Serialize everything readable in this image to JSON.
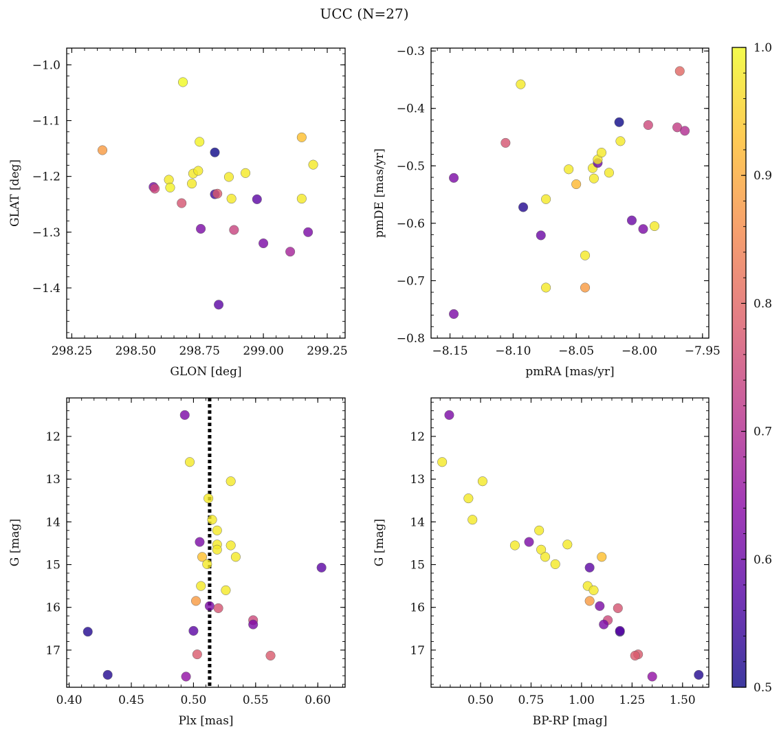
{
  "title": "UCC (N=27)",
  "colorbar": {
    "min": 0.5,
    "max": 1.0,
    "ticks": [
      "0.5",
      "0.6",
      "0.7",
      "0.8",
      "0.9",
      "1.0"
    ],
    "tick_values": [
      0.5,
      0.6,
      0.7,
      0.8,
      0.9,
      1.0
    ],
    "colormap": "plasma",
    "colormap_stops": [
      "#0d0887",
      "#5302a3",
      "#8b0aa5",
      "#b83289",
      "#db5c68",
      "#f48849",
      "#febd2a",
      "#f0f921"
    ]
  },
  "chart_data": [
    {
      "type": "scatter",
      "xlabel": "GLON [deg]",
      "ylabel": "GLAT [deg]",
      "xlim": [
        298.23,
        299.32
      ],
      "ylim": [
        -1.49,
        -0.97
      ],
      "xticks": [
        298.25,
        298.5,
        298.75,
        299.0,
        299.25
      ],
      "xtick_labels": [
        "298.25",
        "298.50",
        "298.75",
        "299.00",
        "299.25"
      ],
      "yticks": [
        -1.0,
        -1.1,
        -1.2,
        -1.3,
        -1.4
      ],
      "ytick_labels": [
        "−1.0",
        "−1.1",
        "−1.2",
        "−1.3",
        "−1.4"
      ],
      "points": [
        {
          "x": 298.37,
          "y": -1.153,
          "c": 0.88
        },
        {
          "x": 298.685,
          "y": -1.031,
          "c": 1.0
        },
        {
          "x": 298.57,
          "y": -1.219,
          "c": 0.62
        },
        {
          "x": 298.575,
          "y": -1.222,
          "c": 0.75
        },
        {
          "x": 298.63,
          "y": -1.206,
          "c": 0.98
        },
        {
          "x": 298.635,
          "y": -1.22,
          "c": 0.99
        },
        {
          "x": 298.68,
          "y": -1.248,
          "c": 0.77
        },
        {
          "x": 298.72,
          "y": -1.213,
          "c": 0.98
        },
        {
          "x": 298.725,
          "y": -1.195,
          "c": 0.98
        },
        {
          "x": 298.745,
          "y": -1.19,
          "c": 0.98
        },
        {
          "x": 298.75,
          "y": -1.138,
          "c": 0.99
        },
        {
          "x": 298.755,
          "y": -1.294,
          "c": 0.62
        },
        {
          "x": 298.81,
          "y": -1.157,
          "c": 0.5
        },
        {
          "x": 298.81,
          "y": -1.232,
          "c": 0.55
        },
        {
          "x": 298.82,
          "y": -1.231,
          "c": 0.78
        },
        {
          "x": 298.825,
          "y": -1.43,
          "c": 0.58
        },
        {
          "x": 298.865,
          "y": -1.201,
          "c": 0.98
        },
        {
          "x": 298.875,
          "y": -1.24,
          "c": 0.98
        },
        {
          "x": 298.885,
          "y": -1.296,
          "c": 0.74
        },
        {
          "x": 298.93,
          "y": -1.194,
          "c": 0.98
        },
        {
          "x": 298.975,
          "y": -1.241,
          "c": 0.58
        },
        {
          "x": 299.0,
          "y": -1.32,
          "c": 0.62
        },
        {
          "x": 299.105,
          "y": -1.335,
          "c": 0.68
        },
        {
          "x": 299.15,
          "y": -1.13,
          "c": 0.93
        },
        {
          "x": 299.15,
          "y": -1.24,
          "c": 0.98
        },
        {
          "x": 299.175,
          "y": -1.3,
          "c": 0.62
        },
        {
          "x": 299.195,
          "y": -1.179,
          "c": 0.98
        }
      ]
    },
    {
      "type": "scatter",
      "xlabel": "pmRA [mas/yr]",
      "ylabel": "pmDE [mas/yr]",
      "xlim": [
        -8.165,
        -7.945
      ],
      "ylim": [
        -0.8,
        -0.295
      ],
      "xticks": [
        -8.15,
        -8.1,
        -8.05,
        -8.0,
        -7.95
      ],
      "xtick_labels": [
        "−8.15",
        "−8.10",
        "−8.05",
        "−8.00",
        "−7.95"
      ],
      "yticks": [
        -0.3,
        -0.4,
        -0.5,
        -0.6,
        -0.7,
        -0.8
      ],
      "ytick_labels": [
        "−0.3",
        "−0.4",
        "−0.5",
        "−0.6",
        "−0.7",
        "−0.8"
      ],
      "points": [
        {
          "x": -8.147,
          "y": -0.521,
          "c": 0.62
        },
        {
          "x": -8.147,
          "y": -0.758,
          "c": 0.62
        },
        {
          "x": -8.106,
          "y": -0.46,
          "c": 0.77
        },
        {
          "x": -8.094,
          "y": -0.358,
          "c": 0.98
        },
        {
          "x": -8.092,
          "y": -0.572,
          "c": 0.52
        },
        {
          "x": -8.078,
          "y": -0.621,
          "c": 0.6
        },
        {
          "x": -8.074,
          "y": -0.558,
          "c": 0.98
        },
        {
          "x": -8.074,
          "y": -0.712,
          "c": 0.98
        },
        {
          "x": -8.056,
          "y": -0.506,
          "c": 0.98
        },
        {
          "x": -8.05,
          "y": -0.532,
          "c": 0.92
        },
        {
          "x": -8.043,
          "y": -0.656,
          "c": 0.98
        },
        {
          "x": -8.043,
          "y": -0.712,
          "c": 0.88
        },
        {
          "x": -8.037,
          "y": -0.504,
          "c": 0.98
        },
        {
          "x": -8.036,
          "y": -0.522,
          "c": 0.98
        },
        {
          "x": -8.033,
          "y": -0.495,
          "c": 0.6
        },
        {
          "x": -8.033,
          "y": -0.489,
          "c": 0.98
        },
        {
          "x": -8.03,
          "y": -0.477,
          "c": 0.98
        },
        {
          "x": -8.024,
          "y": -0.512,
          "c": 0.98
        },
        {
          "x": -8.016,
          "y": -0.424,
          "c": 0.5
        },
        {
          "x": -8.015,
          "y": -0.457,
          "c": 0.98
        },
        {
          "x": -8.006,
          "y": -0.595,
          "c": 0.6
        },
        {
          "x": -7.997,
          "y": -0.61,
          "c": 0.62
        },
        {
          "x": -7.993,
          "y": -0.429,
          "c": 0.75
        },
        {
          "x": -7.988,
          "y": -0.605,
          "c": 0.98
        },
        {
          "x": -7.97,
          "y": -0.433,
          "c": 0.73
        },
        {
          "x": -7.968,
          "y": -0.335,
          "c": 0.8
        },
        {
          "x": -7.964,
          "y": -0.439,
          "c": 0.7
        }
      ]
    },
    {
      "type": "scatter",
      "xlabel": "Plx [mas]",
      "ylabel": "G [mag]",
      "xlim": [
        0.398,
        0.622
      ],
      "ylim": [
        17.87,
        11.1
      ],
      "y_inverted": true,
      "xticks": [
        0.4,
        0.45,
        0.5,
        0.55,
        0.6
      ],
      "xtick_labels": [
        "0.40",
        "0.45",
        "0.50",
        "0.55",
        "0.60"
      ],
      "yticks": [
        12,
        13,
        14,
        15,
        16,
        17
      ],
      "ytick_labels": [
        "12",
        "13",
        "14",
        "15",
        "16",
        "17"
      ],
      "vline": 0.513,
      "points": [
        {
          "x": 0.493,
          "y": 11.5,
          "c": 0.62
        },
        {
          "x": 0.497,
          "y": 12.6,
          "c": 0.98
        },
        {
          "x": 0.53,
          "y": 13.05,
          "c": 0.98
        },
        {
          "x": 0.512,
          "y": 13.45,
          "c": 0.98
        },
        {
          "x": 0.515,
          "y": 13.95,
          "c": 0.98
        },
        {
          "x": 0.519,
          "y": 14.2,
          "c": 0.98
        },
        {
          "x": 0.505,
          "y": 14.47,
          "c": 0.62
        },
        {
          "x": 0.519,
          "y": 14.53,
          "c": 0.98
        },
        {
          "x": 0.53,
          "y": 14.55,
          "c": 0.98
        },
        {
          "x": 0.519,
          "y": 14.65,
          "c": 0.98
        },
        {
          "x": 0.507,
          "y": 14.82,
          "c": 0.93
        },
        {
          "x": 0.534,
          "y": 14.82,
          "c": 0.98
        },
        {
          "x": 0.511,
          "y": 14.99,
          "c": 0.98
        },
        {
          "x": 0.603,
          "y": 15.07,
          "c": 0.58
        },
        {
          "x": 0.506,
          "y": 15.5,
          "c": 0.98
        },
        {
          "x": 0.526,
          "y": 15.6,
          "c": 0.98
        },
        {
          "x": 0.502,
          "y": 15.85,
          "c": 0.88
        },
        {
          "x": 0.513,
          "y": 15.97,
          "c": 0.62
        },
        {
          "x": 0.52,
          "y": 16.02,
          "c": 0.77
        },
        {
          "x": 0.548,
          "y": 16.3,
          "c": 0.75
        },
        {
          "x": 0.548,
          "y": 16.4,
          "c": 0.62
        },
        {
          "x": 0.415,
          "y": 16.57,
          "c": 0.52
        },
        {
          "x": 0.5,
          "y": 16.55,
          "c": 0.58
        },
        {
          "x": 0.503,
          "y": 17.1,
          "c": 0.78
        },
        {
          "x": 0.562,
          "y": 17.13,
          "c": 0.78
        },
        {
          "x": 0.431,
          "y": 17.58,
          "c": 0.52
        },
        {
          "x": 0.494,
          "y": 17.62,
          "c": 0.65
        }
      ]
    },
    {
      "type": "scatter",
      "xlabel": "BP-RP [mag]",
      "ylabel": "G [mag]",
      "xlim": [
        0.255,
        1.63
      ],
      "ylim": [
        17.87,
        11.1
      ],
      "y_inverted": true,
      "xticks": [
        0.5,
        0.75,
        1.0,
        1.25,
        1.5
      ],
      "xtick_labels": [
        "0.50",
        "0.75",
        "1.00",
        "1.25",
        "1.50"
      ],
      "yticks": [
        12,
        13,
        14,
        15,
        16,
        17
      ],
      "ytick_labels": [
        "12",
        "13",
        "14",
        "15",
        "16",
        "17"
      ],
      "points": [
        {
          "x": 0.345,
          "y": 11.5,
          "c": 0.62
        },
        {
          "x": 0.31,
          "y": 12.6,
          "c": 0.98
        },
        {
          "x": 0.51,
          "y": 13.05,
          "c": 0.98
        },
        {
          "x": 0.44,
          "y": 13.45,
          "c": 0.98
        },
        {
          "x": 0.46,
          "y": 13.95,
          "c": 0.98
        },
        {
          "x": 0.79,
          "y": 14.2,
          "c": 0.98
        },
        {
          "x": 0.74,
          "y": 14.47,
          "c": 0.62
        },
        {
          "x": 0.67,
          "y": 14.55,
          "c": 0.98
        },
        {
          "x": 0.93,
          "y": 14.53,
          "c": 0.98
        },
        {
          "x": 0.8,
          "y": 14.65,
          "c": 0.98
        },
        {
          "x": 0.82,
          "y": 14.82,
          "c": 0.98
        },
        {
          "x": 1.1,
          "y": 14.82,
          "c": 0.93
        },
        {
          "x": 0.87,
          "y": 14.99,
          "c": 0.98
        },
        {
          "x": 1.04,
          "y": 15.07,
          "c": 0.58
        },
        {
          "x": 1.03,
          "y": 15.5,
          "c": 0.98
        },
        {
          "x": 1.06,
          "y": 15.6,
          "c": 0.98
        },
        {
          "x": 1.04,
          "y": 15.85,
          "c": 0.88
        },
        {
          "x": 1.09,
          "y": 15.97,
          "c": 0.62
        },
        {
          "x": 1.18,
          "y": 16.02,
          "c": 0.77
        },
        {
          "x": 1.13,
          "y": 16.3,
          "c": 0.75
        },
        {
          "x": 1.11,
          "y": 16.4,
          "c": 0.62
        },
        {
          "x": 1.19,
          "y": 16.57,
          "c": 0.52
        },
        {
          "x": 1.19,
          "y": 16.55,
          "c": 0.58
        },
        {
          "x": 1.28,
          "y": 17.1,
          "c": 0.78
        },
        {
          "x": 1.265,
          "y": 17.13,
          "c": 0.78
        },
        {
          "x": 1.58,
          "y": 17.58,
          "c": 0.52
        },
        {
          "x": 1.35,
          "y": 17.62,
          "c": 0.65
        }
      ]
    }
  ]
}
